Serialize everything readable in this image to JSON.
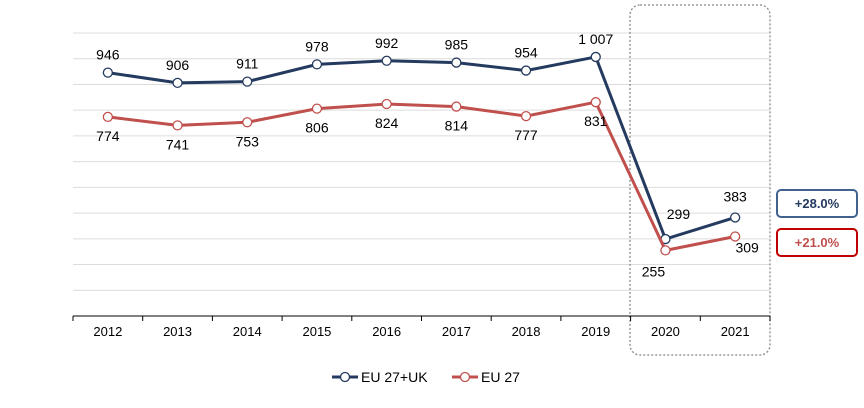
{
  "chart_data": {
    "type": "line",
    "categories": [
      "2012",
      "2013",
      "2014",
      "2015",
      "2016",
      "2017",
      "2018",
      "2019",
      "2020",
      "2021"
    ],
    "ylim": [
      0,
      1100
    ],
    "grid": true,
    "legend_position": "bottom",
    "series": [
      {
        "name": "EU 27+UK",
        "color": "#243a5e",
        "values": [
          946,
          906,
          911,
          978,
          992,
          985,
          954,
          1007,
          299,
          383
        ],
        "labels": [
          "946",
          "906",
          "911",
          "978",
          "992",
          "985",
          "954",
          "1 007",
          "299",
          "383"
        ]
      },
      {
        "name": "EU 27",
        "color": "#c0504d",
        "values": [
          774,
          741,
          753,
          806,
          824,
          814,
          777,
          831,
          255,
          309
        ],
        "labels": [
          "774",
          "741",
          "753",
          "806",
          "824",
          "814",
          "777",
          "831",
          "255",
          "309"
        ]
      }
    ],
    "highlight_categories": [
      "2020",
      "2021"
    ],
    "badges": [
      {
        "text": "+28.0%",
        "color": "#243a5e",
        "border": "#41628f"
      },
      {
        "text": "+21.0%",
        "color": "#c0504d",
        "border": "#c00000"
      }
    ]
  }
}
